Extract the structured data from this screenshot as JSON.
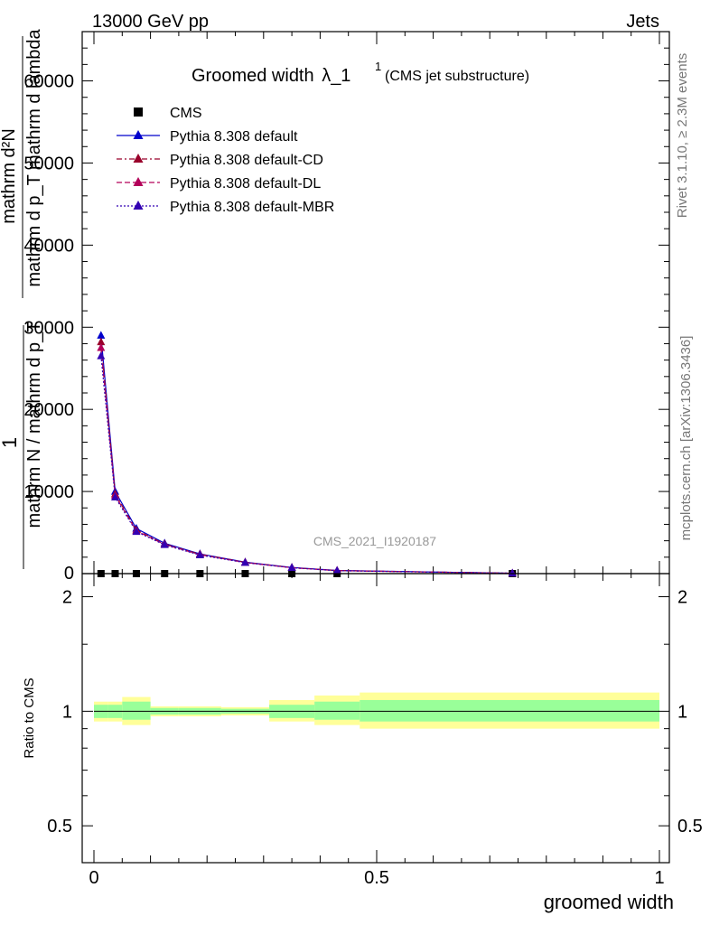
{
  "header": {
    "left": "13000 GeV pp",
    "right": "Jets"
  },
  "side": {
    "rivet": "Rivet 3.1.10, ≥ 2.3M events",
    "mcplots": "mcplots.cern.ch [arXiv:1306.3436]"
  },
  "watermark": "CMS_2021_I1920187",
  "title": {
    "main": "Groomed width",
    "sym": "λ_1",
    "sup": "1",
    "sub": "(CMS jet substructure)"
  },
  "ylabel_main": {
    "num": "mathrm d²N",
    "den": "mathrm d p_T mathrm d lambda",
    "outer_num": "1",
    "outer_den": "mathrm N / mathrm d p_T"
  },
  "ylabel_ratio": "Ratio to CMS",
  "xlabel": "groomed width",
  "legend": [
    {
      "label": "CMS",
      "color": "#000000",
      "marker": "square",
      "dash": "none"
    },
    {
      "label": "Pythia 8.308 default",
      "color": "#0000cc",
      "marker": "triangle",
      "dash": "solid"
    },
    {
      "label": "Pythia 8.308 default-CD",
      "color": "#99002a",
      "marker": "triangle",
      "dash": "dashdot"
    },
    {
      "label": "Pythia 8.308 default-DL",
      "color": "#b30059",
      "marker": "triangle",
      "dash": "dashed"
    },
    {
      "label": "Pythia 8.308 default-MBR",
      "color": "#3300b3",
      "marker": "triangle",
      "dash": "dotted"
    }
  ],
  "chart_data": [
    {
      "type": "line",
      "x": [
        0.0125,
        0.0375,
        0.075,
        0.125,
        0.1875,
        0.2675,
        0.35,
        0.43,
        0.74
      ],
      "xlim": [
        0,
        1
      ],
      "ylim": [
        0,
        66000
      ],
      "yticks": [
        10000,
        20000,
        30000,
        40000,
        50000,
        60000
      ],
      "ytick_labels": [
        "10000",
        "20000",
        "30000",
        "40000",
        "50000",
        "60000"
      ],
      "series": [
        {
          "name": "CMS",
          "values": [
            1.6,
            1.0,
            0.6,
            0.4,
            0.25,
            0.14,
            0.07,
            0.03,
            0.005
          ]
        },
        {
          "name": "Pythia 8.308 default",
          "values": [
            29000,
            10000,
            5500,
            3700,
            2400,
            1400,
            750,
            380,
            40
          ]
        },
        {
          "name": "Pythia 8.308 default-CD",
          "values": [
            28200,
            9700,
            5300,
            3600,
            2350,
            1370,
            730,
            370,
            40
          ]
        },
        {
          "name": "Pythia 8.308 default-DL",
          "values": [
            27500,
            9500,
            5200,
            3550,
            2300,
            1350,
            720,
            360,
            40
          ]
        },
        {
          "name": "Pythia 8.308 default-MBR",
          "values": [
            26500,
            9300,
            5100,
            3500,
            2250,
            1330,
            710,
            350,
            40
          ]
        }
      ]
    },
    {
      "type": "area",
      "xedges": [
        0.0,
        0.025,
        0.05,
        0.1,
        0.15,
        0.225,
        0.31,
        0.39,
        0.47,
        1.0
      ],
      "xlim": [
        0,
        1
      ],
      "ylim": [
        0.4,
        2.3
      ],
      "yticks": [
        0.5,
        1,
        2
      ],
      "ytick_labels": [
        "0.5",
        "1",
        "2"
      ],
      "xticks": [
        0,
        0.5,
        1
      ],
      "xtick_labels": [
        "0",
        "0.5",
        "1"
      ],
      "stat_band": [
        [
          0.96,
          1.04
        ],
        [
          0.96,
          1.04
        ],
        [
          0.95,
          1.06
        ],
        [
          0.98,
          1.02
        ],
        [
          0.98,
          1.02
        ],
        [
          0.985,
          1.015
        ],
        [
          0.96,
          1.04
        ],
        [
          0.95,
          1.06
        ],
        [
          0.94,
          1.07
        ]
      ],
      "total_band": [
        [
          0.94,
          1.06
        ],
        [
          0.94,
          1.06
        ],
        [
          0.92,
          1.09
        ],
        [
          0.97,
          1.03
        ],
        [
          0.97,
          1.03
        ],
        [
          0.975,
          1.025
        ],
        [
          0.94,
          1.07
        ],
        [
          0.92,
          1.1
        ],
        [
          0.9,
          1.12
        ]
      ]
    }
  ]
}
